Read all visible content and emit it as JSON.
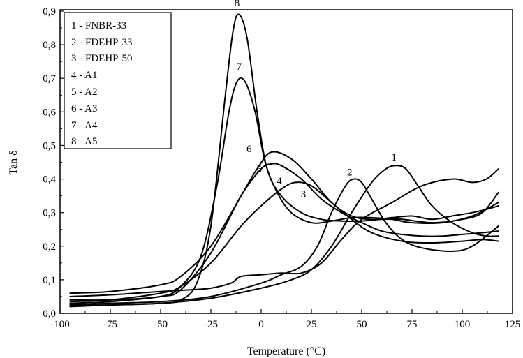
{
  "chart_data": {
    "type": "line",
    "title": "",
    "xlabel": "Temperature (°C)",
    "ylabel": "Tan δ",
    "xlim": [
      -100,
      125
    ],
    "ylim": [
      0.0,
      0.9
    ],
    "x_ticks": [
      "-100",
      "-75",
      "-50",
      "-25",
      "0",
      "25",
      "50",
      "75",
      "100",
      "125"
    ],
    "y_ticks": [
      "0,0",
      "0,1",
      "0,2",
      "0,3",
      "0,4",
      "0,5",
      "0,6",
      "0,7",
      "0,8",
      "0,9"
    ],
    "grid": false,
    "legend_position": "top-left",
    "legend": [
      "1 - FNBR-33",
      "2 - FDEHP-33",
      "3 - FDEHP-50",
      "4 - A1",
      "5 - A2",
      "6 - A3",
      "7 - A4",
      "8 - A5"
    ],
    "series": [
      {
        "name": "1",
        "x": [
          -95,
          -75,
          -50,
          -25,
          0,
          15,
          25,
          35,
          45,
          55,
          62,
          67,
          72,
          78,
          85,
          95,
          105,
          112,
          118
        ],
        "y": [
          0.02,
          0.025,
          0.03,
          0.045,
          0.075,
          0.1,
          0.13,
          0.2,
          0.3,
          0.39,
          0.43,
          0.44,
          0.43,
          0.38,
          0.32,
          0.27,
          0.24,
          0.23,
          0.23
        ],
        "label": {
          "text": "1",
          "x": 66,
          "y": 0.455
        }
      },
      {
        "name": "2",
        "x": [
          -95,
          -75,
          -50,
          -25,
          0,
          10,
          20,
          28,
          35,
          42,
          46,
          50,
          55,
          62,
          70,
          80,
          95,
          105,
          118
        ],
        "y": [
          0.025,
          0.03,
          0.035,
          0.05,
          0.09,
          0.115,
          0.14,
          0.2,
          0.3,
          0.38,
          0.4,
          0.39,
          0.34,
          0.27,
          0.22,
          0.195,
          0.185,
          0.2,
          0.26
        ],
        "label": {
          "text": "2",
          "x": 44,
          "y": 0.41
        }
      },
      {
        "name": "3",
        "x": [
          -95,
          -75,
          -50,
          -35,
          -25,
          -15,
          -10,
          0,
          10,
          20,
          30,
          40,
          50,
          65,
          80,
          95,
          105,
          112,
          118
        ],
        "y": [
          0.05,
          0.055,
          0.065,
          0.07,
          0.075,
          0.09,
          0.11,
          0.115,
          0.12,
          0.12,
          0.15,
          0.22,
          0.28,
          0.33,
          0.38,
          0.4,
          0.39,
          0.4,
          0.43
        ],
        "label": {
          "text": "3",
          "x": 21,
          "y": 0.345
        }
      },
      {
        "name": "4",
        "x": [
          -95,
          -75,
          -50,
          -40,
          -25,
          -10,
          0,
          10,
          17,
          25,
          35,
          45,
          55,
          70,
          85,
          100,
          110,
          118
        ],
        "y": [
          0.035,
          0.04,
          0.06,
          0.08,
          0.15,
          0.26,
          0.32,
          0.37,
          0.39,
          0.38,
          0.33,
          0.28,
          0.24,
          0.215,
          0.21,
          0.215,
          0.22,
          0.215
        ],
        "label": {
          "text": "4",
          "x": 9,
          "y": 0.385
        }
      },
      {
        "name": "5",
        "x": [
          -95,
          -75,
          -50,
          -40,
          -25,
          -10,
          0,
          5,
          10,
          20,
          30,
          40,
          50,
          60,
          70,
          80,
          90,
          100,
          110,
          118
        ],
        "y": [
          0.03,
          0.035,
          0.05,
          0.07,
          0.18,
          0.35,
          0.43,
          0.445,
          0.44,
          0.4,
          0.34,
          0.3,
          0.27,
          0.245,
          0.235,
          0.23,
          0.23,
          0.235,
          0.24,
          0.245
        ],
        "label": {
          "text": "5",
          "x": -1,
          "y": 0.42
        }
      },
      {
        "name": "6",
        "x": [
          -95,
          -75,
          -50,
          -40,
          -25,
          -10,
          -2,
          5,
          15,
          25,
          35,
          45,
          55,
          65,
          75,
          85,
          95,
          105,
          112,
          118
        ],
        "y": [
          0.06,
          0.065,
          0.085,
          0.11,
          0.2,
          0.35,
          0.43,
          0.48,
          0.46,
          0.4,
          0.33,
          0.29,
          0.28,
          0.285,
          0.29,
          0.28,
          0.29,
          0.3,
          0.31,
          0.32
        ],
        "label": {
          "text": "6",
          "x": -6,
          "y": 0.48
        }
      },
      {
        "name": "7",
        "x": [
          -95,
          -75,
          -50,
          -40,
          -30,
          -22,
          -16,
          -12,
          -8,
          -3,
          2,
          8,
          15,
          25,
          35,
          45,
          55,
          65,
          75,
          90,
          105,
          118
        ],
        "y": [
          0.04,
          0.04,
          0.05,
          0.08,
          0.17,
          0.38,
          0.6,
          0.69,
          0.69,
          0.6,
          0.45,
          0.36,
          0.3,
          0.27,
          0.275,
          0.285,
          0.285,
          0.28,
          0.27,
          0.27,
          0.29,
          0.33
        ],
        "label": {
          "text": "7",
          "x": -11,
          "y": 0.725
        }
      },
      {
        "name": "8",
        "x": [
          -95,
          -75,
          -50,
          -40,
          -32,
          -25,
          -18,
          -14,
          -11,
          -7,
          -2,
          3,
          10,
          20,
          30,
          40,
          50,
          60,
          70,
          85,
          100,
          110,
          118
        ],
        "y": [
          0.025,
          0.025,
          0.03,
          0.04,
          0.09,
          0.26,
          0.64,
          0.84,
          0.89,
          0.82,
          0.6,
          0.43,
          0.35,
          0.3,
          0.28,
          0.275,
          0.275,
          0.28,
          0.28,
          0.27,
          0.28,
          0.3,
          0.36
        ],
        "label": {
          "text": "8",
          "x": -12,
          "y": 0.915
        }
      }
    ]
  }
}
